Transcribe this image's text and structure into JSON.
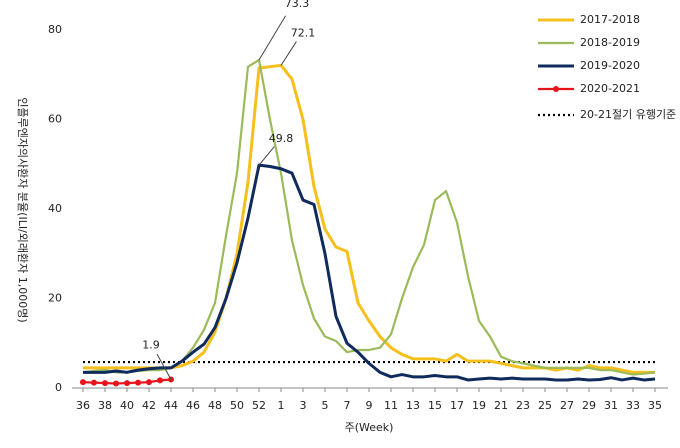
{
  "chart_data": {
    "type": "line",
    "y_axis_label": "인플루엔자의사환자 분율(ILI/외래환자 1,000명)",
    "x_axis_label": "주(Week)",
    "categories": [
      "36",
      null,
      "38",
      null,
      "40",
      null,
      "42",
      null,
      "44",
      null,
      "46",
      null,
      "48",
      null,
      "50",
      null,
      "52",
      null,
      "1",
      null,
      "3",
      null,
      "5",
      null,
      "7",
      null,
      "9",
      null,
      "11",
      null,
      "13",
      null,
      "15",
      null,
      "17",
      null,
      "19",
      null,
      "21",
      null,
      "23",
      null,
      "25",
      null,
      "27",
      null,
      "29",
      null,
      "31",
      null,
      "33",
      null,
      "35"
    ],
    "ylim": [
      0,
      80
    ],
    "yticks": [
      0,
      20,
      40,
      60,
      80
    ],
    "grid": false,
    "legend": "top-right",
    "series": [
      {
        "name": "2017-2018",
        "color": "#f5bf1c",
        "values": [
          4.5,
          4.5,
          4.5,
          4.5,
          4.5,
          4.5,
          4.5,
          4.5,
          4.5,
          5,
          6,
          8,
          12.5,
          20,
          30,
          46,
          71.5,
          71.8,
          72.1,
          69,
          60,
          45,
          35.5,
          31.5,
          30.5,
          19,
          15,
          11.5,
          9,
          7.5,
          6.5,
          6.5,
          6.5,
          6,
          7.5,
          6,
          6,
          6,
          5.5,
          5,
          4.5,
          4.5,
          4.5,
          4,
          4.5,
          4,
          5,
          4.5,
          4.5,
          4,
          3.5,
          3.5,
          3.5
        ],
        "value_labels": [
          null,
          null,
          null,
          null,
          null,
          null,
          null,
          null,
          null,
          null,
          null,
          null,
          null,
          null,
          null,
          null,
          null,
          null,
          "72.1",
          null,
          null,
          null,
          null,
          null,
          null,
          null,
          null,
          null,
          null,
          null,
          null,
          null,
          null,
          null,
          null,
          null,
          null,
          null,
          null,
          null,
          null,
          null,
          null,
          null,
          null,
          null,
          null,
          null,
          null,
          null,
          null,
          null,
          null
        ]
      },
      {
        "name": "2018-2019",
        "color": "#9bbb59",
        "values": [
          3.5,
          3.8,
          4,
          3.5,
          3.5,
          3.8,
          4,
          4,
          4.5,
          6,
          9,
          13,
          19,
          34,
          48,
          71.8,
          73.3,
          60,
          48,
          33,
          23,
          15.5,
          11.5,
          10.5,
          8,
          8.5,
          8.5,
          9,
          12,
          20,
          27,
          32,
          42,
          44,
          37,
          25,
          15,
          11.5,
          7,
          6,
          5.5,
          5,
          4.5,
          4.5,
          4.5,
          4.5,
          4.5,
          4,
          4,
          3.5,
          3,
          3.2,
          3.5
        ],
        "value_labels": [
          null,
          null,
          null,
          null,
          null,
          null,
          null,
          null,
          null,
          null,
          null,
          null,
          null,
          null,
          null,
          null,
          "73.3",
          null,
          null,
          null,
          null,
          null,
          null,
          null,
          null,
          null,
          null,
          null,
          null,
          null,
          null,
          null,
          null,
          null,
          null,
          null,
          null,
          null,
          null,
          null,
          null,
          null,
          null,
          null,
          null,
          null,
          null,
          null,
          null,
          null,
          null,
          null,
          null
        ]
      },
      {
        "name": "2019-2020",
        "color": "#0f2a5c",
        "values": [
          3.5,
          3.5,
          3.5,
          3.8,
          3.5,
          4,
          4.3,
          4.5,
          4.5,
          6,
          8,
          9.8,
          13.5,
          20,
          28,
          38,
          49.8,
          49.5,
          49,
          48,
          42,
          41,
          30,
          16,
          10,
          8,
          5.5,
          3.5,
          2.5,
          3,
          2.5,
          2.5,
          2.8,
          2.5,
          2.5,
          1.8,
          2,
          2.2,
          2,
          2.2,
          2,
          2,
          2,
          1.8,
          1.8,
          2,
          1.8,
          1.9,
          2.3,
          1.8,
          2.2,
          1.8,
          2
        ],
        "value_labels": [
          null,
          null,
          null,
          null,
          null,
          null,
          null,
          null,
          null,
          null,
          null,
          null,
          null,
          null,
          null,
          null,
          "49.8",
          null,
          null,
          null,
          null,
          null,
          null,
          null,
          null,
          null,
          null,
          null,
          null,
          null,
          null,
          null,
          null,
          null,
          null,
          null,
          null,
          null,
          null,
          null,
          null,
          null,
          null,
          null,
          null,
          null,
          null,
          null,
          null,
          null,
          null,
          null,
          null
        ]
      },
      {
        "name": "2020-2021",
        "color": "#e8141c",
        "marker": "circle",
        "values": [
          1.3,
          1.2,
          1.1,
          1,
          1.1,
          1.2,
          1.3,
          1.7,
          1.9,
          null,
          null,
          null,
          null,
          null,
          null,
          null,
          null,
          null,
          null,
          null,
          null,
          null,
          null,
          null,
          null,
          null,
          null,
          null,
          null,
          null,
          null,
          null,
          null,
          null,
          null,
          null,
          null,
          null,
          null,
          null,
          null,
          null,
          null,
          null,
          null,
          null,
          null,
          null,
          null,
          null,
          null,
          null,
          null
        ],
        "value_labels": [
          null,
          null,
          null,
          null,
          null,
          null,
          null,
          null,
          "1.9",
          null,
          null,
          null,
          null,
          null,
          null,
          null,
          null,
          null,
          null,
          null,
          null,
          null,
          null,
          null,
          null,
          null,
          null,
          null,
          null,
          null,
          null,
          null,
          null,
          null,
          null,
          null,
          null,
          null,
          null,
          null,
          null,
          null,
          null,
          null,
          null,
          null,
          null,
          null,
          null,
          null,
          null,
          null,
          null
        ]
      }
    ],
    "threshold": {
      "name": "20-21절기 유행기준",
      "value": 5.8,
      "color": "#000000",
      "style": "dotted"
    }
  }
}
